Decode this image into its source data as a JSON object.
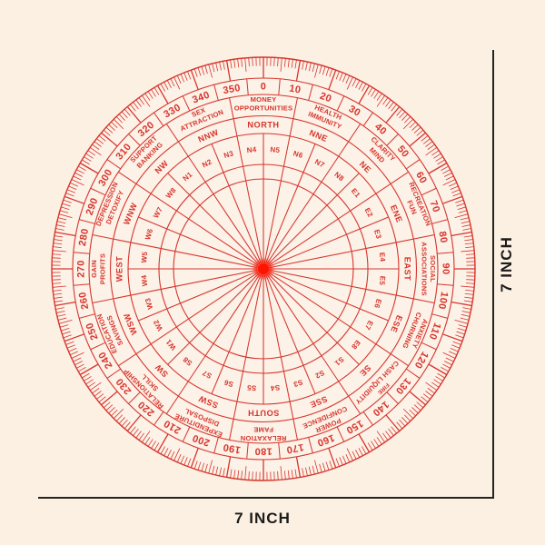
{
  "page": {
    "background_color": "#fcf0e2",
    "description": "7 inch circular vastu compass protractor dial"
  },
  "dial": {
    "accent_color": "#d6352e",
    "face_color": "#fcf2e7",
    "center_dot_color": "#ff1400",
    "tick_interval_deg": 1,
    "degree_label_interval_deg": 10,
    "degree_labels": [
      "0",
      "10",
      "20",
      "30",
      "40",
      "50",
      "60",
      "70",
      "80",
      "90",
      "100",
      "110",
      "120",
      "130",
      "140",
      "150",
      "160",
      "170",
      "180",
      "190",
      "200",
      "210",
      "220",
      "230",
      "240",
      "250",
      "260",
      "270",
      "280",
      "290",
      "300",
      "310",
      "320",
      "330",
      "340",
      "350"
    ],
    "sectors": [
      {
        "angle": 0,
        "line1": "MONEY",
        "line2": "OPPORTUNITIES"
      },
      {
        "angle": 22.5,
        "line1": "HEALTH",
        "line2": "IMMUNITY"
      },
      {
        "angle": 45,
        "line1": "CLARITY",
        "line2": "MIND"
      },
      {
        "angle": 67.5,
        "line1": "RECREATION",
        "line2": "FUN"
      },
      {
        "angle": 90,
        "line1": "SOCIAL",
        "line2": "ASSOCIATIONS"
      },
      {
        "angle": 112.5,
        "line1": "ANXIETY",
        "line2": "CHURNING"
      },
      {
        "angle": 135,
        "line1": "FIRE",
        "line2": "CASH LIQUIDITY",
        "line1_small": true
      },
      {
        "angle": 157.5,
        "line1": "POWER",
        "line2": "CONFIDENCE"
      },
      {
        "angle": 180,
        "line1": "RELAXATION",
        "line2": "FAME"
      },
      {
        "angle": 202.5,
        "line1": "EXPENDITURE",
        "line2": "DISPOSAL"
      },
      {
        "angle": 225,
        "line1": "RELATIONSHIP",
        "line2": "SKILL"
      },
      {
        "angle": 247.5,
        "line1": "EDUCATION",
        "line2": "SAVINGS"
      },
      {
        "angle": 270,
        "line1": "GAIN",
        "line2": "PROFITS"
      },
      {
        "angle": 292.5,
        "line1": "DEPRESSION",
        "line2": "DETOXIFY"
      },
      {
        "angle": 315,
        "line1": "SUPPORT",
        "line2": "BANKING"
      },
      {
        "angle": 337.5,
        "line1": "SEX",
        "line2": "ATTRACTION"
      }
    ],
    "directions": [
      {
        "angle": 0,
        "label": "NORTH"
      },
      {
        "angle": 22.5,
        "label": "NNE"
      },
      {
        "angle": 45,
        "label": "NE"
      },
      {
        "angle": 67.5,
        "label": "ENE"
      },
      {
        "angle": 90,
        "label": "EAST"
      },
      {
        "angle": 112.5,
        "label": "ESE"
      },
      {
        "angle": 135,
        "label": "SE"
      },
      {
        "angle": 157.5,
        "label": "SSE"
      },
      {
        "angle": 180,
        "label": "SOUTH"
      },
      {
        "angle": 202.5,
        "label": "SSW"
      },
      {
        "angle": 225,
        "label": "SW"
      },
      {
        "angle": 247.5,
        "label": "WSW"
      },
      {
        "angle": 270,
        "label": "WEST"
      },
      {
        "angle": 292.5,
        "label": "WNW"
      },
      {
        "angle": 315,
        "label": "NW"
      },
      {
        "angle": 337.5,
        "label": "NNW"
      }
    ],
    "subdirections": [
      {
        "angle": 5.625,
        "label": "N5"
      },
      {
        "angle": 16.875,
        "label": "N6"
      },
      {
        "angle": 28.125,
        "label": "N7"
      },
      {
        "angle": 39.375,
        "label": "N8"
      },
      {
        "angle": 50.625,
        "label": "E1"
      },
      {
        "angle": 61.875,
        "label": "E2"
      },
      {
        "angle": 73.125,
        "label": "E3"
      },
      {
        "angle": 84.375,
        "label": "E4"
      },
      {
        "angle": 95.625,
        "label": "E5"
      },
      {
        "angle": 106.875,
        "label": "E6"
      },
      {
        "angle": 118.125,
        "label": "E7"
      },
      {
        "angle": 129.375,
        "label": "E8"
      },
      {
        "angle": 140.625,
        "label": "S1"
      },
      {
        "angle": 151.875,
        "label": "S2"
      },
      {
        "angle": 163.125,
        "label": "S3"
      },
      {
        "angle": 174.375,
        "label": "S4"
      },
      {
        "angle": 185.625,
        "label": "S5"
      },
      {
        "angle": 196.875,
        "label": "S6"
      },
      {
        "angle": 208.125,
        "label": "S7"
      },
      {
        "angle": 219.375,
        "label": "S8"
      },
      {
        "angle": 230.625,
        "label": "W1"
      },
      {
        "angle": 241.875,
        "label": "W2"
      },
      {
        "angle": 253.125,
        "label": "W3"
      },
      {
        "angle": 264.375,
        "label": "W4"
      },
      {
        "angle": 275.625,
        "label": "W5"
      },
      {
        "angle": 286.875,
        "label": "W6"
      },
      {
        "angle": 298.125,
        "label": "W7"
      },
      {
        "angle": 309.375,
        "label": "W8"
      },
      {
        "angle": 320.625,
        "label": "N1"
      },
      {
        "angle": 331.875,
        "label": "N2"
      },
      {
        "angle": 343.125,
        "label": "N3"
      },
      {
        "angle": 354.375,
        "label": "N4"
      }
    ]
  },
  "dimensions": {
    "right_label": "7 INCH",
    "bottom_label": "7 INCH",
    "line_color": "#232320"
  }
}
